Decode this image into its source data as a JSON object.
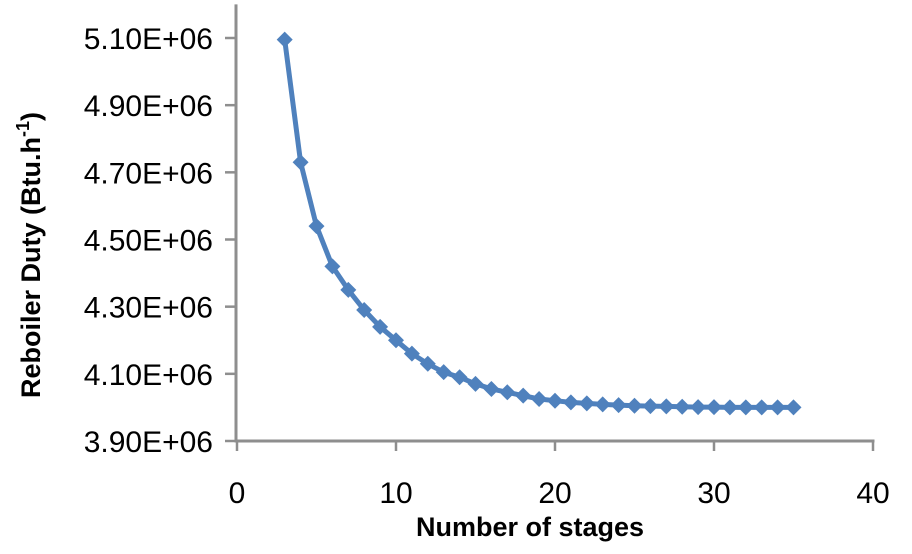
{
  "chart_data": {
    "type": "line",
    "title": "",
    "xlabel": "Number of stages",
    "ylabel": "Reboiler Duty (Btu.h-1)",
    "ylabel_parts": {
      "main": "Reboiler Duty (Btu.h",
      "superscript": "-1",
      "close": ")"
    },
    "x": [
      3,
      4,
      5,
      6,
      7,
      8,
      9,
      10,
      11,
      12,
      13,
      14,
      15,
      16,
      17,
      18,
      19,
      20,
      21,
      22,
      23,
      24,
      25,
      26,
      27,
      28,
      29,
      30,
      31,
      32,
      33,
      34,
      35
    ],
    "series": [
      {
        "name": "Reboiler Duty",
        "values": [
          5095000,
          4730000,
          4540000,
          4420000,
          4350000,
          4290000,
          4240000,
          4200000,
          4160000,
          4130000,
          4105000,
          4090000,
          4070000,
          4055000,
          4045000,
          4035000,
          4025000,
          4020000,
          4015000,
          4012000,
          4009000,
          4007000,
          4005000,
          4004000,
          4003000,
          4002000,
          4001000,
          4001000,
          4000000,
          4000000,
          4000000,
          4000000,
          4000000
        ]
      }
    ],
    "xlim": [
      0,
      40
    ],
    "ylim": [
      3900000,
      5200000
    ],
    "x_ticks": [
      0,
      10,
      20,
      30,
      40
    ],
    "x_tick_labels": [
      "0",
      "10",
      "20",
      "30",
      "40"
    ],
    "y_ticks": [
      3900000,
      4100000,
      4300000,
      4500000,
      4700000,
      4900000,
      5100000
    ],
    "y_tick_labels": [
      "3.90E+06",
      "4.10E+06",
      "4.30E+06",
      "4.50E+06",
      "4.70E+06",
      "4.90E+06",
      "5.10E+06"
    ],
    "grid": false,
    "legend": "none",
    "marker": "diamond",
    "colors": {
      "series": "#4F81BD",
      "axis": "#8E8E8E",
      "text": "#000000",
      "background": "#FFFFFF"
    }
  }
}
